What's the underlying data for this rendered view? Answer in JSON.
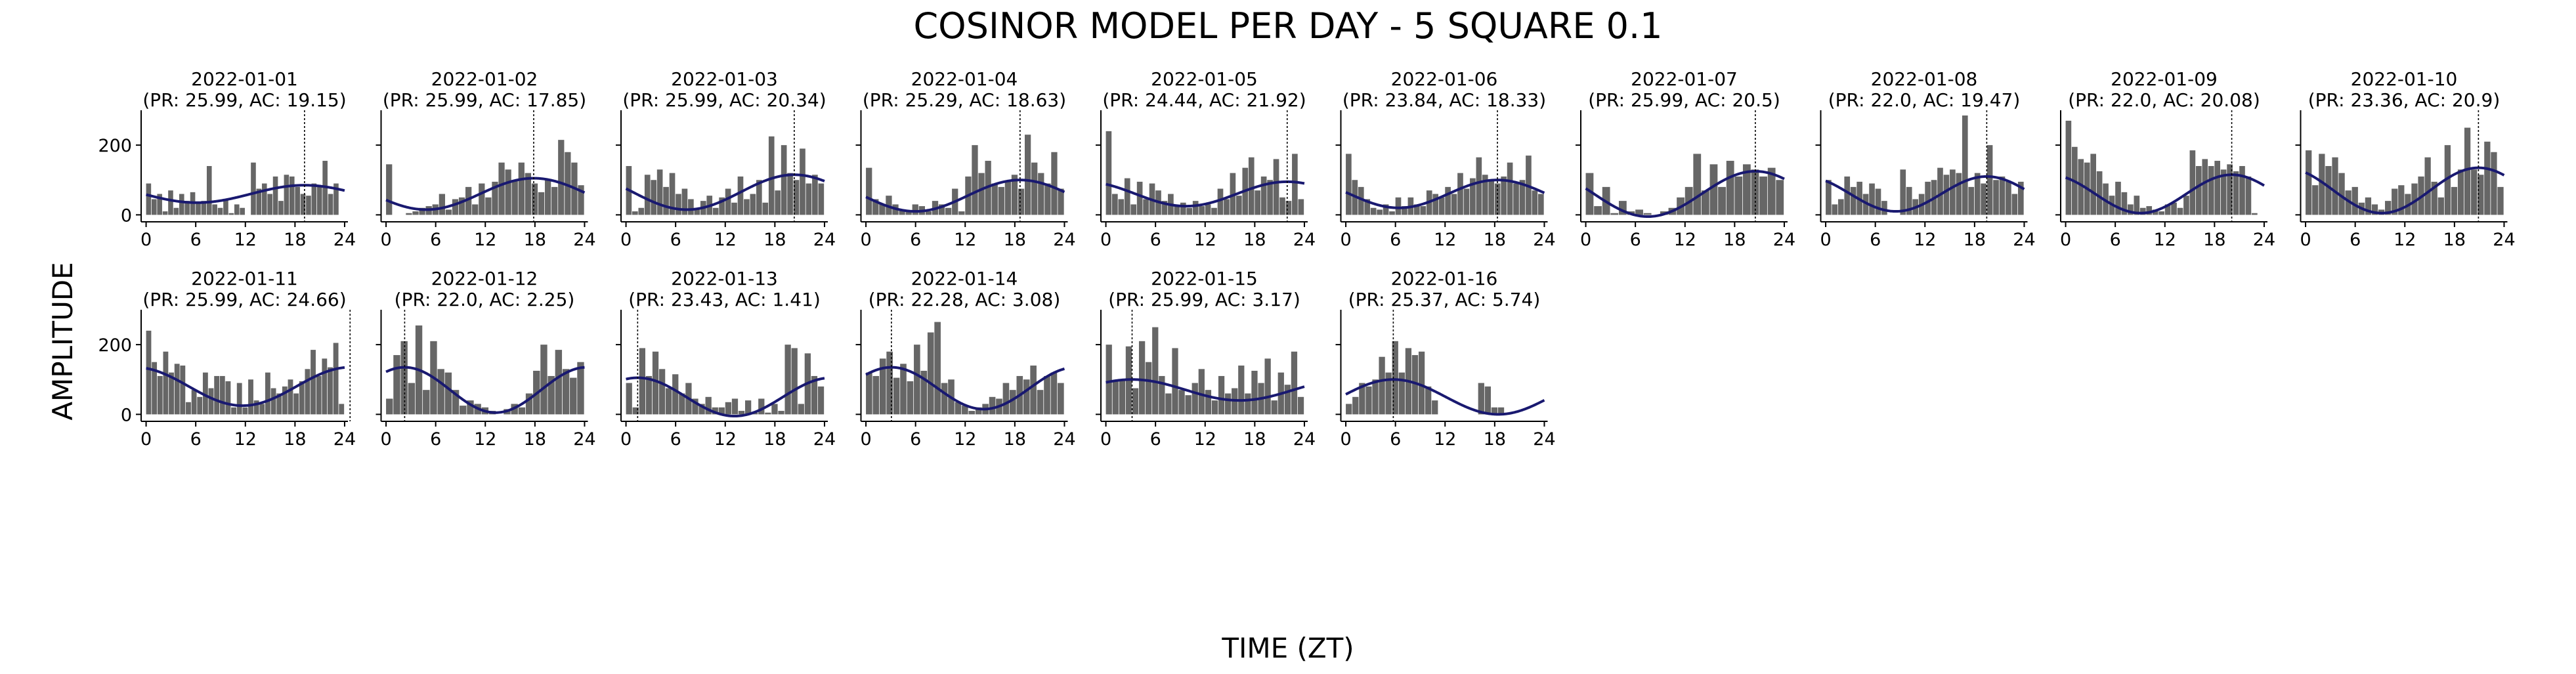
{
  "figure": {
    "title": "COSINOR MODEL PER DAY - 5 SQUARE 0.1",
    "xlabel": "TIME (ZT)",
    "ylabel": "AMPLITUDE"
  },
  "colors": {
    "bars": "#666666",
    "fit_line": "#191970",
    "acrophase_line": "#000000",
    "axes": "#000000"
  },
  "chart_data": [
    {
      "type": "bar+line",
      "title": "2022-01-01",
      "subtitle": "(PR: 25.99, AC: 19.15)",
      "acrophase": 19.15,
      "mesor": 60,
      "amplitude": 25,
      "xlim": [
        -0.6,
        24.4
      ],
      "ylim": [
        -20,
        300
      ],
      "xticks": [
        0,
        6,
        12,
        18,
        24
      ],
      "yticks": [
        0,
        200
      ],
      "values": [
        90,
        45,
        60,
        10,
        70,
        20,
        60,
        40,
        65,
        35,
        40,
        140,
        30,
        20,
        45,
        5,
        30,
        20,
        0,
        150,
        75,
        90,
        60,
        110,
        40,
        115,
        110,
        80,
        60,
        55,
        90,
        80,
        155,
        60,
        90,
        0
      ]
    },
    {
      "type": "bar+line",
      "title": "2022-01-02",
      "subtitle": "(PR: 25.99, AC: 17.85)",
      "acrophase": 17.85,
      "mesor": 60,
      "amplitude": 45,
      "xlim": [
        -0.6,
        24.4
      ],
      "ylim": [
        -20,
        300
      ],
      "xticks": [
        0,
        6,
        12,
        18,
        24
      ],
      "yticks": [
        0,
        200
      ],
      "values": [
        145,
        0,
        0,
        5,
        10,
        20,
        25,
        30,
        60,
        15,
        45,
        50,
        80,
        30,
        90,
        50,
        95,
        150,
        130,
        100,
        150,
        120,
        90,
        65,
        100,
        80,
        215,
        180,
        150,
        85
      ]
    },
    {
      "type": "bar+line",
      "title": "2022-01-03",
      "subtitle": "(PR: 25.99, AC: 20.34)",
      "acrophase": 20.34,
      "mesor": 65,
      "amplitude": 50,
      "xlim": [
        -0.6,
        24.4
      ],
      "ylim": [
        -20,
        300
      ],
      "xticks": [
        0,
        6,
        12,
        18,
        24
      ],
      "yticks": [
        0,
        200
      ],
      "values": [
        140,
        10,
        20,
        115,
        100,
        130,
        80,
        120,
        60,
        75,
        45,
        20,
        40,
        55,
        20,
        50,
        75,
        35,
        110,
        45,
        60,
        100,
        35,
        225,
        70,
        200,
        120,
        100,
        190,
        90,
        115,
        90
      ]
    },
    {
      "type": "bar+line",
      "title": "2022-01-04",
      "subtitle": "(PR: 25.29, AC: 18.63)",
      "acrophase": 18.63,
      "mesor": 55,
      "amplitude": 45,
      "xlim": [
        -0.6,
        24.4
      ],
      "ylim": [
        -20,
        300
      ],
      "xticks": [
        0,
        6,
        12,
        18,
        24
      ],
      "yticks": [
        0,
        200
      ],
      "values": [
        135,
        45,
        30,
        55,
        30,
        15,
        10,
        30,
        25,
        10,
        40,
        30,
        20,
        75,
        10,
        110,
        200,
        120,
        155,
        90,
        80,
        95,
        115,
        75,
        230,
        150,
        120,
        90,
        180,
        75
      ]
    },
    {
      "type": "bar+line",
      "title": "2022-01-05",
      "subtitle": "(PR: 24.44, AC: 21.92)",
      "acrophase": 21.92,
      "mesor": 60,
      "amplitude": 35,
      "xlim": [
        -0.6,
        24.4
      ],
      "ylim": [
        -20,
        300
      ],
      "xticks": [
        0,
        6,
        12,
        18,
        24
      ],
      "yticks": [
        0,
        200
      ],
      "values": [
        240,
        60,
        45,
        105,
        30,
        95,
        45,
        90,
        70,
        40,
        60,
        25,
        35,
        20,
        40,
        25,
        30,
        20,
        75,
        45,
        120,
        55,
        135,
        165,
        70,
        110,
        100,
        160,
        50,
        40,
        175,
        45
      ]
    },
    {
      "type": "bar+line",
      "title": "2022-01-06",
      "subtitle": "(PR: 23.84, AC: 18.33)",
      "acrophase": 18.33,
      "mesor": 60,
      "amplitude": 40,
      "xlim": [
        -0.6,
        24.4
      ],
      "ylim": [
        -20,
        300
      ],
      "xticks": [
        0,
        6,
        12,
        18,
        24
      ],
      "yticks": [
        0,
        200
      ],
      "values": [
        175,
        100,
        80,
        45,
        20,
        15,
        30,
        10,
        50,
        25,
        50,
        30,
        25,
        70,
        60,
        50,
        80,
        60,
        120,
        75,
        105,
        165,
        115,
        100,
        90,
        110,
        150,
        90,
        100,
        170,
        70,
        60
      ]
    },
    {
      "type": "bar+line",
      "title": "2022-01-07",
      "subtitle": "(PR: 25.99, AC: 20.5)",
      "acrophase": 20.5,
      "mesor": 60,
      "amplitude": 65,
      "xlim": [
        -0.6,
        24.4
      ],
      "ylim": [
        -20,
        300
      ],
      "xticks": [
        0,
        6,
        12,
        18,
        24
      ],
      "yticks": [
        0,
        200
      ],
      "values": [
        120,
        25,
        80,
        5,
        40,
        10,
        15,
        5,
        0,
        10,
        20,
        50,
        80,
        175,
        70,
        145,
        80,
        155,
        110,
        145,
        130,
        110,
        135,
        100
      ]
    },
    {
      "type": "bar+line",
      "title": "2022-01-08",
      "subtitle": "(PR: 22.0, AC: 19.47)",
      "acrophase": 19.47,
      "mesor": 60,
      "amplitude": 50,
      "xlim": [
        -0.6,
        24.4
      ],
      "ylim": [
        -20,
        300
      ],
      "xticks": [
        0,
        6,
        12,
        18,
        24
      ],
      "yticks": [
        0,
        200
      ],
      "values": [
        100,
        30,
        45,
        110,
        80,
        95,
        60,
        90,
        75,
        40,
        0,
        0,
        130,
        80,
        45,
        60,
        95,
        100,
        135,
        115,
        130,
        120,
        285,
        80,
        120,
        90,
        200,
        100,
        110,
        95,
        60,
        95
      ]
    },
    {
      "type": "bar+line",
      "title": "2022-01-09",
      "subtitle": "(PR: 22.0, AC: 20.08)",
      "acrophase": 20.08,
      "mesor": 60,
      "amplitude": 55,
      "xlim": [
        -0.6,
        24.4
      ],
      "ylim": [
        -20,
        300
      ],
      "xticks": [
        0,
        6,
        12,
        18,
        24
      ],
      "yticks": [
        0,
        200
      ],
      "values": [
        270,
        195,
        160,
        150,
        175,
        125,
        90,
        55,
        95,
        65,
        30,
        55,
        20,
        25,
        15,
        10,
        30,
        35,
        20,
        55,
        185,
        140,
        160,
        140,
        155,
        130,
        145,
        125,
        140,
        110,
        5,
        0
      ]
    },
    {
      "type": "bar+line",
      "title": "2022-01-10",
      "subtitle": "(PR: 23.36, AC: 20.9)",
      "acrophase": 20.9,
      "mesor": 70,
      "amplitude": 65,
      "xlim": [
        -0.6,
        24.4
      ],
      "ylim": [
        -20,
        300
      ],
      "xticks": [
        0,
        6,
        12,
        18,
        24
      ],
      "yticks": [
        0,
        200
      ],
      "values": [
        185,
        85,
        175,
        140,
        165,
        120,
        70,
        80,
        35,
        50,
        30,
        15,
        40,
        75,
        85,
        60,
        90,
        110,
        165,
        95,
        50,
        200,
        80,
        130,
        250,
        130,
        115,
        210,
        180,
        80
      ]
    },
    {
      "type": "bar+line",
      "title": "2022-01-11",
      "subtitle": "(PR: 25.99, AC: 24.66)",
      "acrophase": 24.66,
      "mesor": 80,
      "amplitude": 55,
      "xlim": [
        -0.6,
        24.4
      ],
      "ylim": [
        -20,
        300
      ],
      "xticks": [
        0,
        6,
        12,
        18,
        24
      ],
      "yticks": [
        0,
        200
      ],
      "values": [
        240,
        150,
        110,
        180,
        120,
        145,
        140,
        35,
        70,
        50,
        120,
        75,
        110,
        110,
        95,
        20,
        90,
        20,
        100,
        40,
        30,
        120,
        75,
        60,
        80,
        100,
        60,
        95,
        130,
        185,
        110,
        160,
        135,
        205,
        30
      ]
    },
    {
      "type": "bar+line",
      "title": "2022-01-12",
      "subtitle": "(PR: 22.0, AC: 2.25)",
      "acrophase": 2.25,
      "mesor": 70,
      "amplitude": 65,
      "xlim": [
        -0.6,
        24.4
      ],
      "ylim": [
        -20,
        300
      ],
      "xticks": [
        0,
        6,
        12,
        18,
        24
      ],
      "yticks": [
        0,
        200
      ],
      "values": [
        45,
        170,
        210,
        90,
        255,
        70,
        210,
        130,
        120,
        70,
        25,
        40,
        30,
        20,
        10,
        0,
        15,
        30,
        20,
        60,
        125,
        200,
        110,
        185,
        130,
        105,
        150
      ]
    },
    {
      "type": "bar+line",
      "title": "2022-01-13",
      "subtitle": "(PR: 23.43, AC: 1.41)",
      "acrophase": 1.41,
      "mesor": 50,
      "amplitude": 55,
      "xlim": [
        -0.6,
        24.4
      ],
      "ylim": [
        -20,
        300
      ],
      "xticks": [
        0,
        6,
        12,
        18,
        24
      ],
      "yticks": [
        0,
        200
      ],
      "values": [
        90,
        20,
        190,
        110,
        180,
        130,
        75,
        115,
        60,
        90,
        45,
        30,
        50,
        20,
        20,
        35,
        45,
        10,
        40,
        5,
        45,
        5,
        30,
        10,
        200,
        190,
        30,
        175,
        110,
        80
      ]
    },
    {
      "type": "bar+line",
      "title": "2022-01-14",
      "subtitle": "(PR: 22.28, AC: 3.08)",
      "acrophase": 3.08,
      "mesor": 75,
      "amplitude": 60,
      "xlim": [
        -0.6,
        24.4
      ],
      "ylim": [
        -20,
        300
      ],
      "xticks": [
        0,
        6,
        12,
        18,
        24
      ],
      "yticks": [
        0,
        200
      ],
      "values": [
        120,
        110,
        160,
        180,
        105,
        145,
        95,
        200,
        125,
        235,
        265,
        90,
        100,
        35,
        25,
        10,
        20,
        30,
        50,
        45,
        90,
        70,
        110,
        100,
        140,
        70,
        110,
        120,
        90
      ]
    },
    {
      "type": "bar+line",
      "title": "2022-01-15",
      "subtitle": "(PR: 25.99, AC: 3.17)",
      "acrophase": 3.17,
      "mesor": 70,
      "amplitude": 30,
      "xlim": [
        -0.6,
        24.4
      ],
      "ylim": [
        -20,
        300
      ],
      "xticks": [
        0,
        6,
        12,
        18,
        24
      ],
      "yticks": [
        0,
        200
      ],
      "values": [
        200,
        95,
        100,
        195,
        75,
        210,
        150,
        250,
        110,
        60,
        190,
        70,
        55,
        90,
        130,
        70,
        40,
        110,
        60,
        75,
        140,
        60,
        125,
        90,
        160,
        40,
        120,
        85,
        180,
        50
      ]
    },
    {
      "type": "bar+line",
      "title": "2022-01-16",
      "subtitle": "(PR: 25.37, AC: 5.74)",
      "acrophase": 5.74,
      "mesor": 50,
      "amplitude": 50,
      "xlim": [
        -0.6,
        24.4
      ],
      "ylim": [
        -20,
        300
      ],
      "xticks": [
        0,
        6,
        12,
        18,
        24
      ],
      "yticks": [
        0,
        200
      ],
      "values": [
        30,
        50,
        90,
        80,
        100,
        165,
        120,
        210,
        120,
        190,
        170,
        180,
        80,
        40,
        0,
        0,
        0,
        0,
        0,
        0,
        90,
        80,
        20,
        20,
        0,
        0,
        0,
        0,
        0,
        0
      ]
    }
  ]
}
